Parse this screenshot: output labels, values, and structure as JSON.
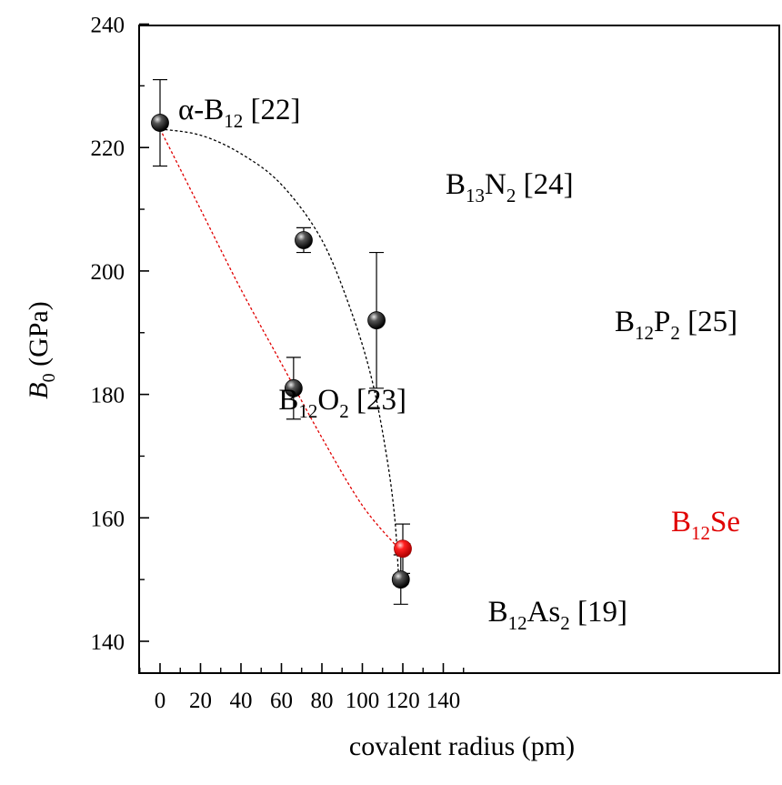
{
  "chart_data": {
    "type": "scatter",
    "xlabel": "covalent radius (pm)",
    "ylabel": {
      "main": "B",
      "sub": "0",
      "rest": " (GPa)"
    },
    "xlim": [
      -5,
      155
    ],
    "ylim": [
      135,
      240
    ],
    "x_ticks": [
      0,
      20,
      40,
      60,
      80,
      100,
      120,
      140
    ],
    "y_ticks": [
      140,
      160,
      180,
      200,
      220,
      240
    ],
    "grid": false,
    "points": [
      {
        "id": "alpha-b12",
        "x": 0,
        "y": 224,
        "xerr": 0,
        "yerr": 7,
        "color": "#000000",
        "label": [
          {
            "t": "α-B",
            "s": false
          },
          {
            "t": "12",
            "s": true
          },
          {
            "t": " [22]",
            "s": false
          }
        ]
      },
      {
        "id": "b13n2",
        "x": 71,
        "y": 205,
        "xerr": 0,
        "yerr": 2,
        "color": "#000000",
        "label": [
          {
            "t": "B",
            "s": false
          },
          {
            "t": "13",
            "s": true
          },
          {
            "t": "N",
            "s": false
          },
          {
            "t": "2",
            "s": true
          },
          {
            "t": " [24]",
            "s": false
          }
        ]
      },
      {
        "id": "b12p2",
        "x": 107,
        "y": 192,
        "xerr": 2,
        "yerr": 11,
        "color": "#000000",
        "label": [
          {
            "t": "B",
            "s": false
          },
          {
            "t": "12",
            "s": true
          },
          {
            "t": "P",
            "s": false
          },
          {
            "t": "2",
            "s": true
          },
          {
            "t": " [25]",
            "s": false
          }
        ]
      },
      {
        "id": "b12o2",
        "x": 66,
        "y": 181,
        "xerr": 0,
        "yerr": 5,
        "color": "#000000",
        "label": [
          {
            "t": "B",
            "s": false
          },
          {
            "t": "12",
            "s": true
          },
          {
            "t": "O",
            "s": false
          },
          {
            "t": "2",
            "s": true
          },
          {
            "t": " [23]",
            "s": false
          }
        ]
      },
      {
        "id": "b12se",
        "x": 120,
        "y": 155,
        "xerr": 3.5,
        "yerr": 4,
        "color": "#e00000",
        "label": [
          {
            "t": "B",
            "s": false
          },
          {
            "t": "12",
            "s": true
          },
          {
            "t": "Se",
            "s": false
          }
        ]
      },
      {
        "id": "b12as2",
        "x": 119,
        "y": 150,
        "xerr": 3.5,
        "yerr": 4,
        "color": "#000000",
        "label": [
          {
            "t": "B",
            "s": false
          },
          {
            "t": "12",
            "s": true
          },
          {
            "t": "As",
            "s": false
          },
          {
            "t": "2",
            "s": true
          },
          {
            "t": " [19]",
            "s": false
          }
        ]
      }
    ],
    "fit_curves": [
      {
        "id": "black-fit",
        "color": "#000000",
        "points": [
          [
            0,
            223
          ],
          [
            20,
            222
          ],
          [
            40,
            219
          ],
          [
            60,
            214
          ],
          [
            80,
            205
          ],
          [
            95,
            193
          ],
          [
            105,
            182
          ],
          [
            112,
            170
          ],
          [
            116,
            160
          ],
          [
            118,
            150
          ]
        ]
      },
      {
        "id": "red-fit",
        "color": "#e00000",
        "points": [
          [
            0,
            223
          ],
          [
            20,
            210
          ],
          [
            40,
            197
          ],
          [
            60,
            185
          ],
          [
            80,
            173
          ],
          [
            100,
            162
          ],
          [
            118,
            155
          ]
        ]
      }
    ]
  }
}
